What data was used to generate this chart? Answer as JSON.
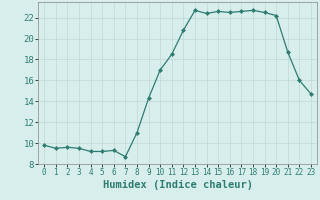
{
  "x": [
    0,
    1,
    2,
    3,
    4,
    5,
    6,
    7,
    8,
    9,
    10,
    11,
    12,
    13,
    14,
    15,
    16,
    17,
    18,
    19,
    20,
    21,
    22,
    23
  ],
  "y": [
    9.8,
    9.5,
    9.6,
    9.5,
    9.2,
    9.2,
    9.3,
    8.7,
    11.0,
    14.3,
    17.0,
    18.5,
    20.8,
    22.7,
    22.4,
    22.6,
    22.5,
    22.6,
    22.7,
    22.5,
    22.2,
    18.7,
    16.0,
    14.7
  ],
  "line_color": "#2e7d72",
  "marker": "D",
  "marker_size": 2.0,
  "line_width": 0.9,
  "xlabel": "Humidex (Indice chaleur)",
  "xlim": [
    -0.5,
    23.5
  ],
  "ylim": [
    8,
    23.5
  ],
  "yticks": [
    8,
    10,
    12,
    14,
    16,
    18,
    20,
    22
  ],
  "xticks": [
    0,
    1,
    2,
    3,
    4,
    5,
    6,
    7,
    8,
    9,
    10,
    11,
    12,
    13,
    14,
    15,
    16,
    17,
    18,
    19,
    20,
    21,
    22,
    23
  ],
  "bg_color": "#d8eeec",
  "grid_color": "#c0d8d5",
  "x_tick_fontsize": 5.5,
  "y_tick_fontsize": 6.5,
  "xlabel_fontsize": 7.5
}
